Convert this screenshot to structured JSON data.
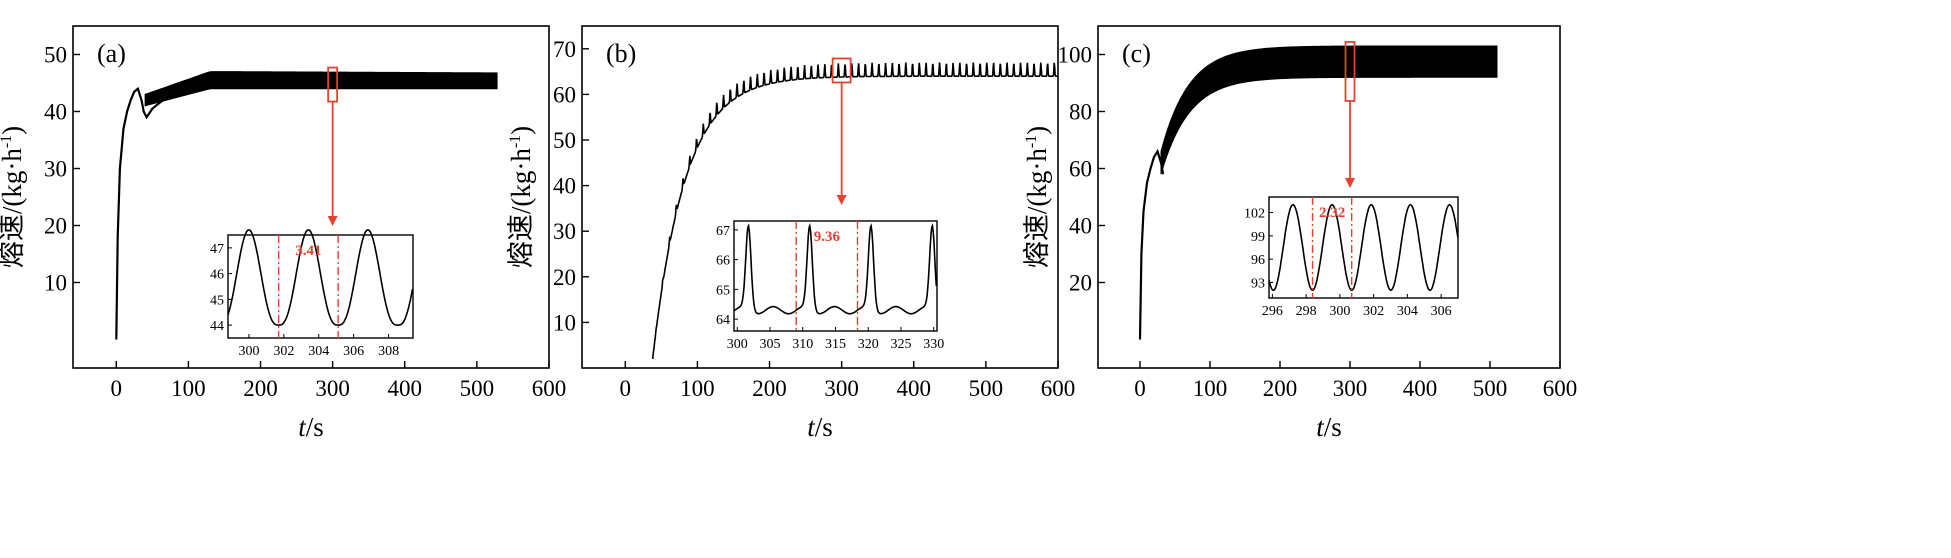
{
  "figure": {
    "colors": {
      "line": "#000000",
      "marker": "#e8412c"
    }
  },
  "chart_data": [
    {
      "type": "line",
      "panel_label": "(a)",
      "xlabel_italic": "t",
      "xlabel_unit": "/s",
      "ylabel_cn": "熔速",
      "ylabel_unit": "/(kg·h",
      "ylabel_exp": "-1",
      "ylabel_close": ")",
      "xlim": [
        -60,
        600
      ],
      "ylim": [
        -5,
        55
      ],
      "xticks": [
        "0",
        "100",
        "200",
        "300",
        "400",
        "500",
        "600"
      ],
      "yticks": [
        "10",
        "20",
        "30",
        "40",
        "50"
      ],
      "rise": {
        "end_t": 530,
        "steady_lo": 44,
        "steady_hi": 47
      },
      "highlight_x": 300,
      "inset": {
        "xlim": [
          298.8,
          309.4
        ],
        "ylim": [
          43.5,
          47.5
        ],
        "xticks": [
          "300",
          "302",
          "304",
          "306",
          "308"
        ],
        "yticks": [
          "44",
          "45",
          "46",
          "47"
        ],
        "period": 3.41,
        "period_label": "3.41",
        "marker_lines": [
          301.7,
          305.11
        ]
      }
    },
    {
      "type": "line",
      "panel_label": "(b)",
      "xlabel_italic": "t",
      "xlabel_unit": "/s",
      "ylabel_cn": "熔速",
      "ylabel_unit": "/(kg·h",
      "ylabel_exp": "-1",
      "ylabel_close": ")",
      "xlim": [
        -60,
        600
      ],
      "ylim": [
        0,
        75
      ],
      "xticks": [
        "0",
        "100",
        "200",
        "300",
        "400",
        "500",
        "600"
      ],
      "yticks": [
        "10",
        "20",
        "30",
        "40",
        "50",
        "60",
        "70"
      ],
      "rise": {
        "end_t": 600,
        "steady_lo": 64,
        "steady_hi": 67
      },
      "highlight_x": 300,
      "inset": {
        "xlim": [
          299.5,
          330.5
        ],
        "ylim": [
          63.6,
          67.3
        ],
        "xticks": [
          "300",
          "305",
          "310",
          "315",
          "320",
          "325",
          "330"
        ],
        "yticks": [
          "64",
          "65",
          "66",
          "67"
        ],
        "period": 9.36,
        "period_label": "9.36",
        "marker_lines": [
          309.0,
          318.36
        ]
      }
    },
    {
      "type": "line",
      "panel_label": "(c)",
      "xlabel_italic": "t",
      "xlabel_unit": "/s",
      "ylabel_cn": "熔速",
      "ylabel_unit": "/(kg·h",
      "ylabel_exp": "-1",
      "ylabel_close": ")",
      "xlim": [
        -60,
        600
      ],
      "ylim": [
        -10,
        110
      ],
      "xticks": [
        "0",
        "100",
        "200",
        "300",
        "400",
        "500",
        "600"
      ],
      "yticks": [
        "20",
        "40",
        "60",
        "80",
        "100"
      ],
      "rise": {
        "end_t": 510,
        "steady_lo": 92,
        "steady_hi": 103
      },
      "highlight_x": 300,
      "inset": {
        "xlim": [
          295.8,
          307.0
        ],
        "ylim": [
          91,
          104
        ],
        "xticks": [
          "296",
          "298",
          "300",
          "302",
          "304",
          "306"
        ],
        "yticks": [
          "93",
          "96",
          "99",
          "102"
        ],
        "period": 2.32,
        "period_label": "2.32",
        "marker_lines": [
          298.38,
          300.7
        ]
      }
    }
  ]
}
